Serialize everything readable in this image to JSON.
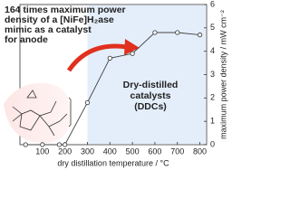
{
  "chart_data": {
    "type": "line",
    "title_lines": [
      "164 times maximum power",
      "density of a [NiFe]H₂ase",
      "mimic as a catalyst",
      "for anode"
    ],
    "annotation_lines": [
      "Dry-distilled",
      "catalysts",
      "(DDCs)"
    ],
    "x_label": "dry distillation temperature / °C",
    "y_label": "maximum power density / mW cm⁻²",
    "x": [
      25,
      100,
      175,
      200,
      300,
      400,
      500,
      600,
      700,
      800
    ],
    "series": [
      {
        "color": "#444444",
        "values": [
          0,
          0,
          0,
          0,
          1.8,
          3.7,
          3.9,
          4.8,
          4.8,
          4.7
        ]
      }
    ],
    "xlim": [
      0,
      830
    ],
    "xticks": [
      100,
      200,
      300,
      400,
      500,
      600,
      700,
      800
    ],
    "ylim": [
      0,
      6
    ],
    "yticks": [
      0,
      1,
      2,
      3,
      4,
      5,
      6
    ],
    "title_color": "#e0301e",
    "annotation_color": "#2a4fb8"
  }
}
